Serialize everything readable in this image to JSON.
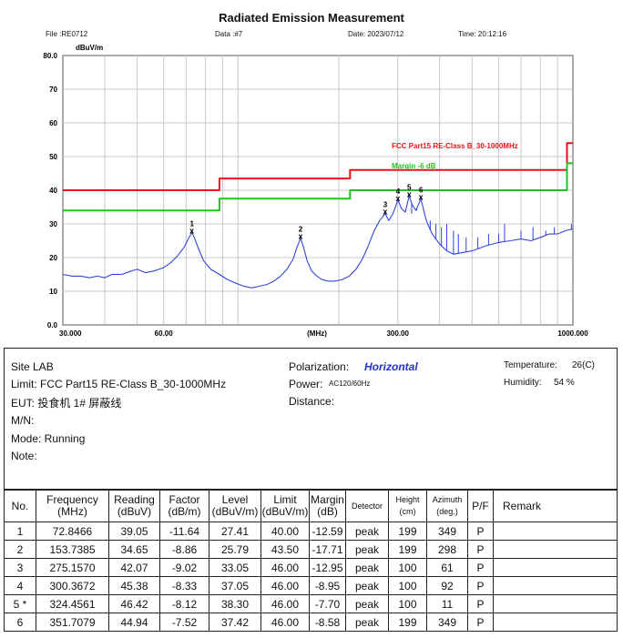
{
  "header": {
    "title": "Radiated Emission Measurement",
    "file": "File :RE0712",
    "data": "Data :#7",
    "date": "Date: 2023/07/12",
    "time": "Time: 20:12:16"
  },
  "chart_data": {
    "type": "line",
    "xscale": "log",
    "xlim": [
      30,
      1000
    ],
    "ylim": [
      0,
      80
    ],
    "yticks": [
      0,
      10,
      20,
      30,
      40,
      50,
      60,
      70,
      80
    ],
    "ytick_labels": [
      "0.0",
      "10",
      "20",
      "30",
      "40",
      "50",
      "60",
      "70",
      "80.0"
    ],
    "xticks": [
      30,
      60,
      300,
      1000
    ],
    "xtick_labels": [
      "30.000",
      "60.00",
      "300.00",
      "1000.000"
    ],
    "xunit_label": "(MHz)",
    "yunit_label": "dBuV/m",
    "grid": true,
    "series": [
      {
        "name": "FCC Part15 RE-Class B_30-1000MHz",
        "color": "#e8141a",
        "x": [
          30,
          88,
          88,
          216,
          216,
          960,
          960,
          1000
        ],
        "y": [
          40,
          40,
          43.5,
          43.5,
          46,
          46,
          54,
          54
        ]
      },
      {
        "name": "Margin -6 dB",
        "color": "#1ec41e",
        "x": [
          30,
          88,
          88,
          216,
          216,
          960,
          960,
          1000
        ],
        "y": [
          34,
          34,
          37.5,
          37.5,
          40,
          40,
          48,
          48
        ]
      },
      {
        "color": "#3344dd",
        "x": [
          30,
          32,
          34,
          36,
          38,
          40,
          42,
          45,
          48,
          50,
          53,
          56,
          60,
          63,
          66,
          69,
          71,
          72.85,
          74,
          76,
          79,
          83,
          88,
          93,
          98,
          104,
          110,
          116,
          122,
          128,
          134,
          140,
          146,
          150,
          153.74,
          157,
          161,
          166,
          172,
          178,
          186,
          195,
          205,
          215,
          225,
          235,
          245,
          255,
          265,
          275.16,
          282,
          290,
          300.37,
          308,
          316,
          324.46,
          332,
          340,
          351.71,
          365,
          380,
          400,
          420,
          440,
          470,
          500,
          550,
          600,
          650,
          700,
          750,
          800,
          850,
          900,
          950,
          1000
        ],
        "y": [
          15,
          14.5,
          14.5,
          14,
          14.5,
          14,
          15,
          15,
          16,
          16.5,
          15.5,
          16,
          17,
          18.5,
          20.5,
          23,
          25.5,
          27.41,
          26,
          23,
          19,
          16.5,
          15,
          13.5,
          12.5,
          11.5,
          11,
          11.5,
          12,
          13,
          14.5,
          16.5,
          19.5,
          23,
          25.79,
          23,
          19,
          16,
          14.5,
          13.5,
          13,
          13,
          13.5,
          14.5,
          16.5,
          19.5,
          23.5,
          28,
          31,
          33.05,
          31,
          33,
          37.05,
          34.5,
          33.5,
          38.3,
          35.5,
          34,
          37.42,
          31,
          27,
          24,
          22,
          21,
          21.5,
          22,
          23.5,
          24.5,
          25,
          25.5,
          25,
          26,
          27,
          27,
          28,
          28.5
        ]
      }
    ],
    "spikes": [
      {
        "x": 330,
        "y": 33
      },
      {
        "x": 342,
        "y": 34
      },
      {
        "x": 360,
        "y": 33
      },
      {
        "x": 375,
        "y": 31
      },
      {
        "x": 390,
        "y": 30
      },
      {
        "x": 405,
        "y": 29
      },
      {
        "x": 420,
        "y": 30
      },
      {
        "x": 440,
        "y": 28
      },
      {
        "x": 455,
        "y": 27
      },
      {
        "x": 480,
        "y": 26
      },
      {
        "x": 520,
        "y": 26
      },
      {
        "x": 560,
        "y": 27
      },
      {
        "x": 600,
        "y": 27
      },
      {
        "x": 625,
        "y": 30
      },
      {
        "x": 700,
        "y": 28
      },
      {
        "x": 760,
        "y": 29
      },
      {
        "x": 830,
        "y": 28
      },
      {
        "x": 880,
        "y": 29
      },
      {
        "x": 990,
        "y": 30
      }
    ],
    "markers": [
      {
        "label": "1",
        "x": 72.8466,
        "y": 27.41
      },
      {
        "label": "2",
        "x": 153.7385,
        "y": 25.79
      },
      {
        "label": "3",
        "x": 275.157,
        "y": 33.05
      },
      {
        "label": "4",
        "x": 300.3672,
        "y": 37.05
      },
      {
        "label": "5",
        "x": 324.4561,
        "y": 38.3
      },
      {
        "label": "6",
        "x": 351.7079,
        "y": 37.42
      }
    ]
  },
  "info": {
    "site": "Site LAB",
    "limit": "Limit:  FCC Part15 RE-Class B_30-1000MHz",
    "eut": "EUT:  投食机 1# 屏蔽线",
    "mn": "M/N:",
    "mode": "Mode:  Running",
    "note": "Note:",
    "polarization_label": "Polarization:",
    "polarization_value": "Horizontal",
    "power_label": "Power:",
    "power_value": "AC120/60Hz",
    "distance": "Distance:",
    "temperature_label": "Temperature:",
    "temperature_value": "26(C)",
    "humidity_label": "Humidity:",
    "humidity_value": "54 %"
  },
  "table": {
    "headers": {
      "no": "No.",
      "freq_1": "Frequency",
      "freq_2": "(MHz)",
      "reading_1": "Reading",
      "reading_2": "(dBuV)",
      "factor_1": "Factor",
      "factor_2": "(dB/m)",
      "level_1": "Level",
      "level_2": "(dBuV/m)",
      "limit_1": "Limit",
      "limit_2": "(dBuV/m)",
      "margin_1": "Margin",
      "margin_2": "(dB)",
      "detector": "Detector",
      "height_1": "Height",
      "height_2": "(cm)",
      "azimuth_1": "Azimuth",
      "azimuth_2": "(deg.)",
      "pf": "P/F",
      "remark": "Remark"
    },
    "rows": [
      {
        "no": "1",
        "freq": "72.8466",
        "reading": "39.05",
        "factor": "-11.64",
        "level": "27.41",
        "limit": "40.00",
        "margin": "-12.59",
        "detector": "peak",
        "height": "199",
        "azimuth": "349",
        "pf": "P",
        "remark": ""
      },
      {
        "no": "2",
        "freq": "153.7385",
        "reading": "34.65",
        "factor": "-8.86",
        "level": "25.79",
        "limit": "43.50",
        "margin": "-17.71",
        "detector": "peak",
        "height": "199",
        "azimuth": "298",
        "pf": "P",
        "remark": ""
      },
      {
        "no": "3",
        "freq": "275.1570",
        "reading": "42.07",
        "factor": "-9.02",
        "level": "33.05",
        "limit": "46.00",
        "margin": "-12.95",
        "detector": "peak",
        "height": "100",
        "azimuth": "61",
        "pf": "P",
        "remark": ""
      },
      {
        "no": "4",
        "freq": "300.3672",
        "reading": "45.38",
        "factor": "-8.33",
        "level": "37.05",
        "limit": "46.00",
        "margin": "-8.95",
        "detector": "peak",
        "height": "100",
        "azimuth": "92",
        "pf": "P",
        "remark": ""
      },
      {
        "no": "5 *",
        "freq": "324.4561",
        "reading": "46.42",
        "factor": "-8.12",
        "level": "38.30",
        "limit": "46.00",
        "margin": "-7.70",
        "detector": "peak",
        "height": "100",
        "azimuth": "11",
        "pf": "P",
        "remark": ""
      },
      {
        "no": "6",
        "freq": "351.7079",
        "reading": "44.94",
        "factor": "-7.52",
        "level": "37.42",
        "limit": "46.00",
        "margin": "-8.58",
        "detector": "peak",
        "height": "199",
        "azimuth": "349",
        "pf": "P",
        "remark": ""
      }
    ]
  }
}
